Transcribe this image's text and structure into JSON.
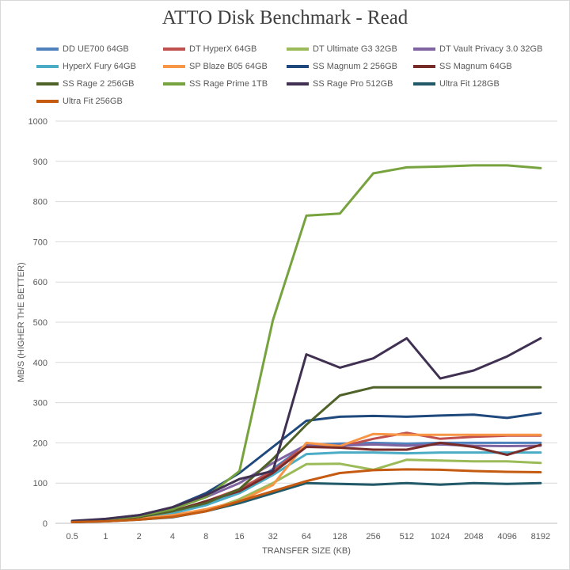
{
  "chart_data": {
    "type": "line",
    "title": "ATTO Disk Benchmark - Read",
    "xlabel": "TRANSFER SIZE (KB)",
    "ylabel": "MB/S (HIGHER THE BETTER)",
    "ylim": [
      0,
      1000
    ],
    "yticks": [
      "0",
      "100",
      "200",
      "300",
      "400",
      "500",
      "600",
      "700",
      "800",
      "900",
      "1000"
    ],
    "grid": true,
    "legend_position": "top",
    "categories": [
      "0.5",
      "1",
      "2",
      "4",
      "8",
      "16",
      "32",
      "64",
      "128",
      "256",
      "512",
      "1024",
      "2048",
      "4096",
      "8192"
    ],
    "series": [
      {
        "name": "DD UE700 64GB",
        "color": "#4f81bd",
        "values": [
          4,
          7,
          13,
          25,
          45,
          80,
          135,
          195,
          198,
          200,
          198,
          200,
          200,
          200,
          200
        ]
      },
      {
        "name": "DT HyperX 64GB",
        "color": "#c0504d",
        "values": [
          4,
          8,
          16,
          30,
          55,
          85,
          130,
          195,
          190,
          210,
          225,
          210,
          215,
          218,
          218
        ]
      },
      {
        "name": "DT Ultimate G3 32GB",
        "color": "#9bbb59",
        "values": [
          3,
          6,
          11,
          18,
          30,
          60,
          100,
          147,
          148,
          133,
          158,
          156,
          154,
          154,
          150
        ]
      },
      {
        "name": "DT Vault Privacy 3.0 32GB",
        "color": "#8064a2",
        "values": [
          5,
          10,
          20,
          38,
          65,
          100,
          150,
          195,
          193,
          196,
          193,
          196,
          193,
          192,
          193
        ]
      },
      {
        "name": "HyperX Fury 64GB",
        "color": "#4bacc6",
        "values": [
          4,
          7,
          14,
          25,
          45,
          75,
          120,
          172,
          176,
          176,
          174,
          176,
          176,
          176,
          176
        ]
      },
      {
        "name": "SP Blaze B05 64GB",
        "color": "#f79646",
        "values": [
          3,
          6,
          11,
          20,
          35,
          55,
          95,
          200,
          192,
          222,
          220,
          220,
          220,
          220,
          220
        ]
      },
      {
        "name": "SS Magnum 2 256GB",
        "color": "#1f497d",
        "values": [
          5,
          10,
          20,
          40,
          75,
          125,
          190,
          255,
          265,
          267,
          265,
          268,
          270,
          262,
          274
        ]
      },
      {
        "name": "SS Magnum 64GB",
        "color": "#772c2a",
        "values": [
          4,
          8,
          16,
          30,
          55,
          80,
          125,
          190,
          188,
          183,
          183,
          200,
          190,
          170,
          195
        ]
      },
      {
        "name": "SS Rage 2 256GB",
        "color": "#4f6228",
        "values": [
          4,
          8,
          16,
          30,
          50,
          85,
          160,
          245,
          318,
          338,
          338,
          338,
          338,
          338,
          338
        ]
      },
      {
        "name": "SS Rage Prime 1TB",
        "color": "#77a33e",
        "values": [
          4,
          9,
          18,
          35,
          65,
          130,
          505,
          765,
          770,
          870,
          885,
          887,
          890,
          890,
          883
        ]
      },
      {
        "name": "SS Rage Pro 512GB",
        "color": "#403152",
        "values": [
          6,
          11,
          20,
          40,
          70,
          110,
          130,
          420,
          387,
          410,
          460,
          360,
          380,
          415,
          460
        ]
      },
      {
        "name": "Ultra Fit 128GB",
        "color": "#215968",
        "values": [
          3,
          5,
          9,
          15,
          30,
          50,
          75,
          100,
          98,
          96,
          100,
          96,
          100,
          98,
          100
        ]
      },
      {
        "name": "Ultra Fit 256GB",
        "color": "#c55a11",
        "values": [
          3,
          5,
          9,
          16,
          30,
          55,
          80,
          105,
          125,
          132,
          134,
          133,
          130,
          128,
          127
        ]
      }
    ]
  }
}
